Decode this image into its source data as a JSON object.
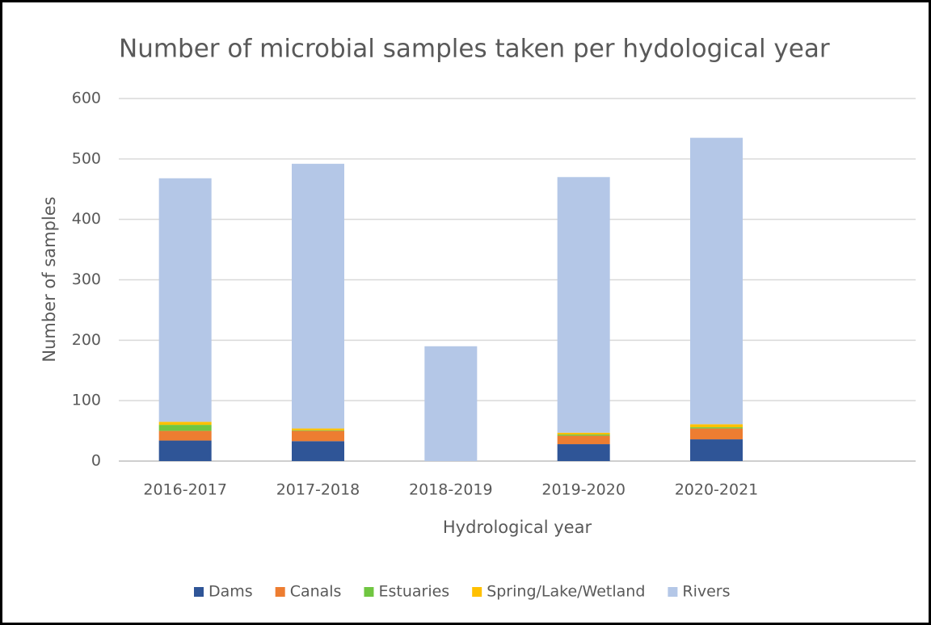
{
  "chart_data": {
    "type": "stacked_bar",
    "title": "Number of microbial samples taken per hydological year",
    "x_label": "Hydrological year",
    "y_label": "Number of samples",
    "categories": [
      "2016-2017",
      "2017-2018",
      "2018-2019",
      "2019-2020",
      "2020-2021",
      null
    ],
    "series": [
      {
        "name": "Dams",
        "color": "#2f5597",
        "values": [
          34,
          33,
          0,
          28,
          36,
          null
        ]
      },
      {
        "name": "Canals",
        "color": "#ed7d31",
        "values": [
          16,
          17,
          0,
          14,
          18,
          null
        ]
      },
      {
        "name": "Estuaries",
        "color": "#70c641",
        "values": [
          10,
          1,
          0,
          2,
          2,
          null
        ]
      },
      {
        "name": "Spring/Lake/Wetland",
        "color": "#ffc000",
        "values": [
          5,
          3,
          0,
          3,
          5,
          null
        ]
      },
      {
        "name": "Rivers",
        "color": "#b4c7e7",
        "values": [
          403,
          438,
          190,
          423,
          474,
          null
        ]
      }
    ],
    "ylim": [
      0,
      600
    ],
    "yticks": [
      0,
      100,
      200,
      300,
      400,
      500,
      600
    ],
    "grid": true,
    "legend": "bottom"
  }
}
